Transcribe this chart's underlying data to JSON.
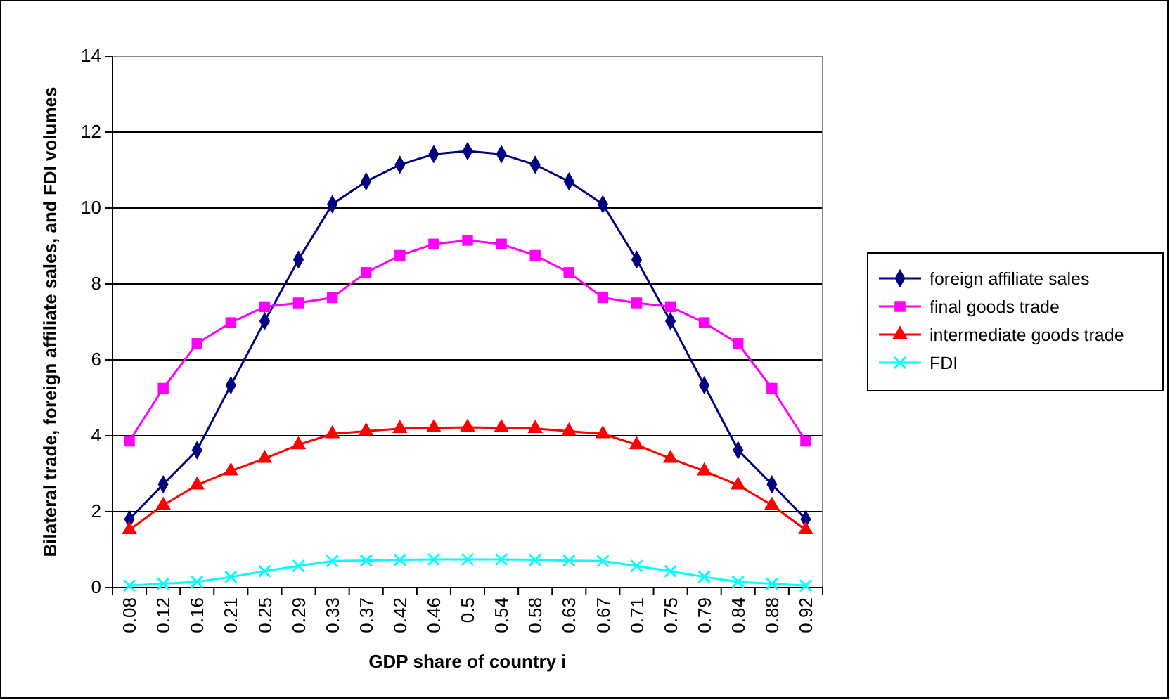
{
  "chart_data": {
    "type": "line",
    "xlabel": "GDP share of country i",
    "ylabel": "Bilateral trade, foreign affiliate sales, and FDI volumes",
    "categories": [
      "0.08",
      "0.12",
      "0.16",
      "0.21",
      "0.25",
      "0.29",
      "0.33",
      "0.37",
      "0.42",
      "0.46",
      "0.5",
      "0.54",
      "0.58",
      "0.63",
      "0.67",
      "0.71",
      "0.75",
      "0.79",
      "0.84",
      "0.88",
      "0.92"
    ],
    "ylim": [
      0,
      14
    ],
    "yticks": [
      0,
      2,
      4,
      6,
      8,
      10,
      12,
      14
    ],
    "grid": "y",
    "legend": "right",
    "series": [
      {
        "name": "foreign affiliate sales",
        "color": "#000080",
        "marker": "diamond",
        "values": [
          1.8,
          2.72,
          3.62,
          5.33,
          7.02,
          8.64,
          10.1,
          10.7,
          11.14,
          11.42,
          11.5,
          11.42,
          11.14,
          10.7,
          10.1,
          8.64,
          7.02,
          5.33,
          3.62,
          2.72,
          1.8
        ]
      },
      {
        "name": "final goods trade",
        "color": "#ff00ff",
        "marker": "square",
        "values": [
          3.86,
          5.25,
          6.43,
          6.98,
          7.4,
          7.5,
          7.64,
          8.3,
          8.75,
          9.05,
          9.15,
          9.05,
          8.75,
          8.3,
          7.64,
          7.5,
          7.4,
          6.98,
          6.43,
          5.25,
          3.86
        ]
      },
      {
        "name": "intermediate goods trade",
        "color": "#ff0000",
        "marker": "triangle",
        "values": [
          1.52,
          2.17,
          2.7,
          3.07,
          3.4,
          3.76,
          4.05,
          4.12,
          4.19,
          4.21,
          4.22,
          4.21,
          4.19,
          4.12,
          4.05,
          3.76,
          3.4,
          3.07,
          2.7,
          2.17,
          1.52
        ]
      },
      {
        "name": "FDI",
        "color": "#00ffff",
        "marker": "cross",
        "values": [
          0.05,
          0.1,
          0.15,
          0.28,
          0.43,
          0.57,
          0.7,
          0.71,
          0.73,
          0.74,
          0.74,
          0.74,
          0.73,
          0.71,
          0.7,
          0.57,
          0.43,
          0.28,
          0.15,
          0.1,
          0.05
        ]
      }
    ]
  }
}
